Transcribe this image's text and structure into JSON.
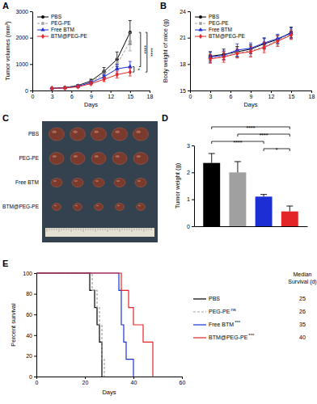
{
  "chart_data": [
    {
      "type": "line",
      "panel": "A",
      "x_label": "Days",
      "y_label": "Tumor volumes (mm³)",
      "xlim": [
        0,
        18
      ],
      "xticks": [
        0,
        3,
        6,
        9,
        12,
        15,
        18
      ],
      "ylim": [
        0,
        3000
      ],
      "yticks": [
        0,
        1000,
        2000,
        3000
      ],
      "legend": "upper left",
      "x": [
        3,
        5,
        7,
        9,
        11,
        13,
        15
      ],
      "series": [
        {
          "name": "PBS",
          "color": "#000000",
          "marker": "circle",
          "line_style": "solid",
          "values": [
            80,
            110,
            190,
            360,
            720,
            1180,
            2200
          ],
          "error": [
            10,
            20,
            35,
            70,
            150,
            280,
            450
          ]
        },
        {
          "name": "PEG-PE",
          "color": "#a0a0a0",
          "marker": "square",
          "line_style": "dashed",
          "values": [
            80,
            105,
            175,
            320,
            620,
            1000,
            1850
          ],
          "error": [
            10,
            20,
            30,
            60,
            120,
            230,
            350
          ]
        },
        {
          "name": "Free BTM",
          "color": "#1c2fd4",
          "marker": "triangle",
          "line_style": "solid",
          "values": [
            80,
            100,
            160,
            300,
            520,
            820,
            900
          ],
          "error": [
            10,
            18,
            30,
            50,
            100,
            170,
            200
          ]
        },
        {
          "name": "BTM@PEG-PE",
          "color": "#e42525",
          "marker": "diamond",
          "line_style": "solid",
          "values": [
            80,
            95,
            140,
            260,
            420,
            600,
            700
          ],
          "error": [
            10,
            15,
            25,
            45,
            80,
            130,
            150
          ]
        }
      ],
      "annotations": [
        {
          "label": "*",
          "series": [
            2,
            3
          ]
        },
        {
          "label": "****",
          "series": [
            0,
            2
          ]
        },
        {
          "label": "****",
          "series": [
            0,
            3
          ]
        }
      ]
    },
    {
      "type": "line",
      "panel": "B",
      "x_label": "Days",
      "y_label": "Body weight of mice (g)",
      "xlim": [
        0,
        18
      ],
      "xticks": [
        0,
        3,
        6,
        9,
        12,
        15,
        18
      ],
      "ylim": [
        15,
        24
      ],
      "yticks": [
        15,
        18,
        21,
        24
      ],
      "legend": "upper left",
      "x": [
        3,
        5,
        7,
        9,
        11,
        13,
        15
      ],
      "series": [
        {
          "name": "PBS",
          "color": "#000000",
          "marker": "circle",
          "line_style": "solid",
          "values": [
            18.9,
            19.1,
            19.4,
            19.7,
            20.3,
            20.8,
            21.6
          ],
          "error": [
            0.5,
            0.6,
            0.6,
            0.5,
            0.6,
            0.5,
            0.6
          ]
        },
        {
          "name": "PEG-PE",
          "color": "#a0a0a0",
          "marker": "square",
          "line_style": "dashed",
          "values": [
            18.7,
            18.9,
            19.3,
            19.5,
            20.0,
            20.7,
            21.4
          ],
          "error": [
            0.5,
            0.5,
            0.6,
            0.6,
            0.5,
            0.6,
            0.5
          ]
        },
        {
          "name": "Free BTM",
          "color": "#1c2fd4",
          "marker": "triangle",
          "line_style": "solid",
          "values": [
            18.8,
            19.0,
            19.6,
            19.8,
            20.4,
            20.9,
            21.5
          ],
          "error": [
            0.6,
            0.5,
            0.7,
            0.6,
            0.6,
            0.5,
            0.6
          ]
        },
        {
          "name": "BTM@PEG-PE",
          "color": "#e42525",
          "marker": "diamond",
          "line_style": "solid",
          "values": [
            18.6,
            18.8,
            19.2,
            19.4,
            19.9,
            20.6,
            21.3
          ],
          "error": [
            0.5,
            0.6,
            0.5,
            0.6,
            0.6,
            0.6,
            0.5
          ]
        }
      ]
    },
    {
      "type": "image",
      "panel": "C",
      "row_labels": [
        "PBS",
        "PEG-PE",
        "Free BTM",
        "BTM@PEG-PE"
      ]
    },
    {
      "type": "bar",
      "panel": "D",
      "y_label": "Tumor weight (g)",
      "categories": [
        null,
        null,
        null,
        null
      ],
      "values": [
        2.35,
        2.0,
        1.1,
        0.55
      ],
      "error": [
        0.35,
        0.4,
        0.08,
        0.2
      ],
      "colors": [
        "#000000",
        "#a0a0a0",
        "#1c2fd4",
        "#e42525"
      ],
      "ylim": [
        0,
        3
      ],
      "yticks": [
        0,
        1,
        2,
        3
      ],
      "tick_labels": "y",
      "comparisons": [
        {
          "pair": [
            2,
            3
          ],
          "label": "*"
        },
        {
          "pair": [
            0,
            2
          ],
          "label": "****"
        },
        {
          "pair": [
            1,
            3
          ],
          "label": "****"
        },
        {
          "pair": [
            0,
            3
          ],
          "label": "****"
        }
      ]
    },
    {
      "type": "step",
      "panel": "E",
      "x_label": "Days",
      "y_label": "Percent survival",
      "xlim": [
        0,
        60
      ],
      "xticks": [
        0,
        20,
        40,
        60
      ],
      "ylim": [
        0,
        100
      ],
      "yticks": [
        0,
        20,
        40,
        60,
        80,
        100
      ],
      "legend": "right",
      "median_title": [
        "Median",
        "Survival (d)"
      ],
      "median_survival": [
        25,
        26,
        35,
        40
      ],
      "significance": [
        null,
        "ns",
        "***",
        "***"
      ],
      "series": [
        {
          "name": "PBS",
          "color": "#000000",
          "line_style": "solid",
          "x": [
            0,
            22,
            24,
            25,
            26,
            27
          ],
          "values": [
            100,
            83.3,
            66.7,
            50,
            33.3,
            0
          ]
        },
        {
          "name": "PEG-PE",
          "color": "#a0a0a0",
          "line_style": "dashed",
          "x": [
            0,
            23,
            25,
            26,
            27,
            28
          ],
          "values": [
            100,
            83.3,
            66.7,
            50,
            16.7,
            0
          ]
        },
        {
          "name": "Free BTM",
          "color": "#1c2fd4",
          "line_style": "solid",
          "x": [
            0,
            34,
            35,
            36,
            37,
            40
          ],
          "values": [
            100,
            83.3,
            50,
            33.3,
            16.7,
            0
          ]
        },
        {
          "name": "BTM@PEG-PE",
          "color": "#e42525",
          "line_style": "solid",
          "x": [
            0,
            35,
            38,
            40,
            44,
            48
          ],
          "values": [
            100,
            83.3,
            66.7,
            50,
            33.3,
            0
          ]
        }
      ]
    }
  ]
}
